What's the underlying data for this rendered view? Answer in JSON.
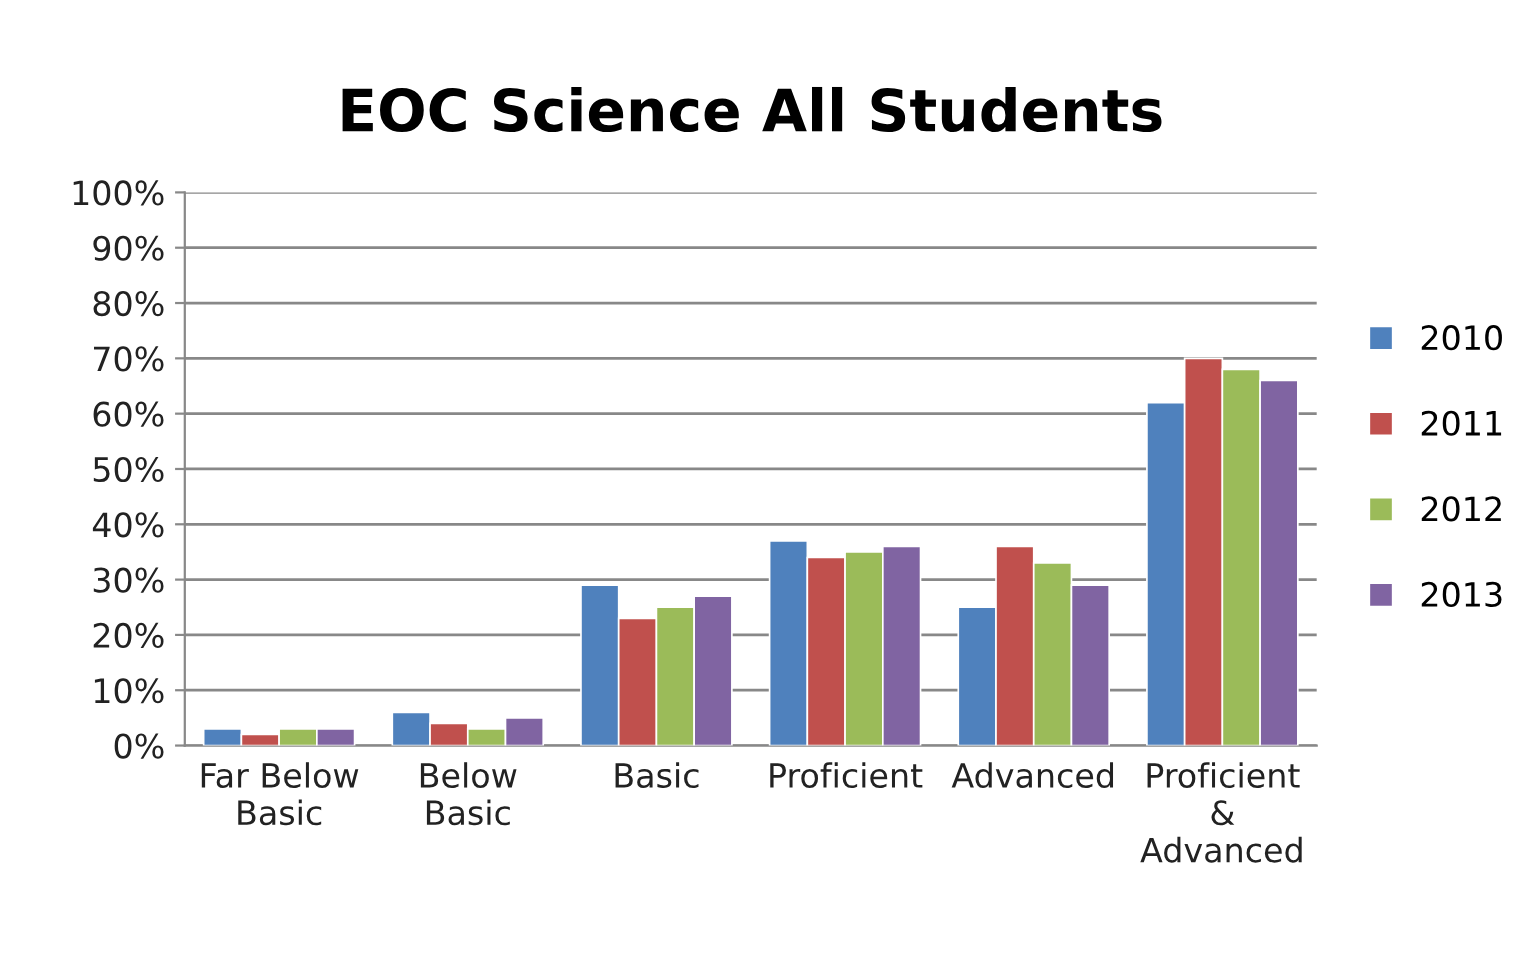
{
  "chart_data": {
    "type": "bar",
    "title": "EOC Science All Students",
    "categories": [
      "Far Below\nBasic",
      "Below\nBasic",
      "Basic",
      "Proficient",
      "Advanced",
      "Proficient\n&\nAdvanced"
    ],
    "series": [
      {
        "name": "2010",
        "color": "#4f81bd",
        "values": [
          3,
          6,
          29,
          37,
          25,
          62
        ]
      },
      {
        "name": "2011",
        "color": "#c0504d",
        "values": [
          2,
          4,
          23,
          34,
          36,
          70
        ]
      },
      {
        "name": "2012",
        "color": "#9bbb59",
        "values": [
          3,
          3,
          25,
          35,
          33,
          68
        ]
      },
      {
        "name": "2013",
        "color": "#8064a2",
        "values": [
          3,
          5,
          27,
          36,
          29,
          66
        ]
      }
    ],
    "ylim": [
      0,
      100
    ],
    "yticks": [
      {
        "value": 0,
        "label": "0%"
      },
      {
        "value": 10,
        "label": "10%"
      },
      {
        "value": 20,
        "label": "20%"
      },
      {
        "value": 30,
        "label": "30%"
      },
      {
        "value": 40,
        "label": "40%"
      },
      {
        "value": 50,
        "label": "50%"
      },
      {
        "value": 60,
        "label": "60%"
      },
      {
        "value": 70,
        "label": "70%"
      },
      {
        "value": 80,
        "label": "80%"
      },
      {
        "value": 90,
        "label": "90%"
      },
      {
        "value": 100,
        "label": "100%"
      }
    ],
    "grid": "y",
    "legend": "right"
  }
}
